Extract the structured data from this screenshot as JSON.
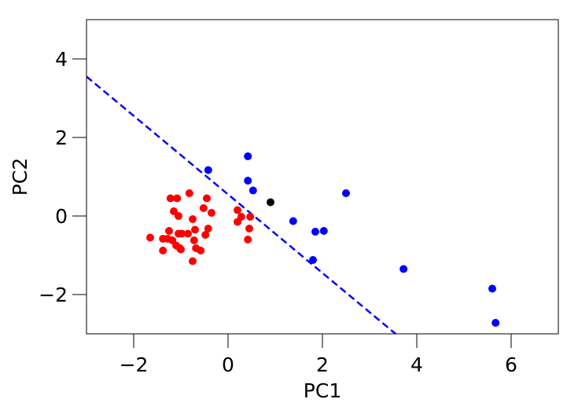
{
  "chart_data": {
    "type": "scatter",
    "xlabel": "PC1",
    "ylabel": "PC2",
    "xlim": [
      -3,
      7
    ],
    "ylim": [
      -3,
      5
    ],
    "x_ticks": [
      -2,
      0,
      2,
      4,
      6
    ],
    "y_ticks": [
      -2,
      0,
      2,
      4
    ],
    "x_tick_labels": [
      "−2",
      "0",
      "2",
      "4",
      "6"
    ],
    "y_tick_labels": [
      "−2",
      "0",
      "2",
      "4"
    ],
    "grid": false,
    "legend": "none",
    "series": [
      {
        "color": "#ff0000",
        "points": [
          [
            -1.65,
            -0.55
          ],
          [
            -1.38,
            -0.58
          ],
          [
            -1.38,
            -0.88
          ],
          [
            -1.28,
            -0.58
          ],
          [
            -1.25,
            -0.38
          ],
          [
            -1.22,
            0.45
          ],
          [
            -1.18,
            -0.62
          ],
          [
            -1.15,
            0.12
          ],
          [
            -1.1,
            -0.75
          ],
          [
            -1.08,
            0.45
          ],
          [
            -1.05,
            -0.45
          ],
          [
            -1.05,
            0.0
          ],
          [
            -1.02,
            -0.82
          ],
          [
            -1.0,
            -0.85
          ],
          [
            -0.98,
            -0.45
          ],
          [
            -0.85,
            -0.45
          ],
          [
            -0.82,
            0.58
          ],
          [
            -0.75,
            -0.08
          ],
          [
            -0.75,
            -1.15
          ],
          [
            -0.72,
            -0.62
          ],
          [
            -0.7,
            -0.35
          ],
          [
            -0.68,
            -0.82
          ],
          [
            -0.58,
            -0.88
          ],
          [
            -0.52,
            0.2
          ],
          [
            -0.48,
            -0.48
          ],
          [
            -0.45,
            0.45
          ],
          [
            -0.42,
            -0.32
          ],
          [
            -0.35,
            0.08
          ],
          [
            0.2,
            0.15
          ],
          [
            0.2,
            -0.15
          ],
          [
            0.28,
            -0.02
          ],
          [
            0.42,
            -0.6
          ],
          [
            0.45,
            -0.32
          ],
          [
            0.47,
            -0.02
          ]
        ]
      },
      {
        "color": "#0000ff",
        "points": [
          [
            -0.42,
            1.17
          ],
          [
            0.42,
            1.52
          ],
          [
            0.42,
            0.9
          ],
          [
            0.53,
            0.65
          ],
          [
            1.38,
            -0.13
          ],
          [
            1.8,
            -1.12
          ],
          [
            1.85,
            -0.4
          ],
          [
            2.03,
            -0.38
          ],
          [
            2.5,
            0.58
          ],
          [
            3.72,
            -1.35
          ],
          [
            5.6,
            -1.85
          ],
          [
            5.67,
            -2.72
          ]
        ]
      },
      {
        "color": "#000000",
        "points": [
          [
            0.9,
            0.35
          ]
        ]
      }
    ],
    "decision_line": {
      "style": "dashed",
      "color": "#0000ff",
      "points": [
        [
          -3,
          3.55
        ],
        [
          3.55,
          -3
        ]
      ]
    },
    "marker_size": 5
  }
}
